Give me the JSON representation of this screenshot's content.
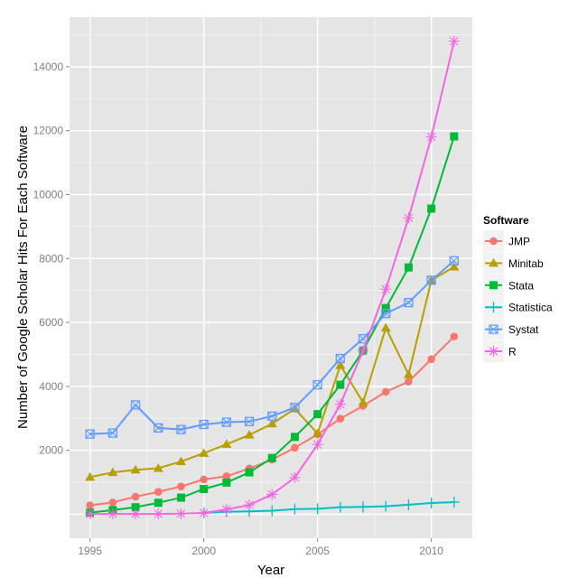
{
  "chart_data": {
    "type": "line",
    "title": "",
    "xlabel": "Year",
    "ylabel": "Number of Google Scholar Hits For Each Software",
    "xlim": [
      1994.1,
      2011.8
    ],
    "ylim": [
      -750,
      15550
    ],
    "x_ticks": [
      1995,
      2000,
      2005,
      2010
    ],
    "x_tick_labels": [
      "1995",
      "2000",
      "2005",
      "2010"
    ],
    "y_ticks": [
      2000,
      4000,
      6000,
      8000,
      10000,
      12000,
      14000
    ],
    "y_tick_labels": [
      "2000",
      "4000",
      "6000",
      "8000",
      "10000",
      "12000",
      "14000"
    ],
    "grid": true,
    "legend": {
      "title": "Software",
      "placement": "right"
    },
    "x": [
      1995,
      1996,
      1997,
      1998,
      1999,
      2000,
      2001,
      2002,
      2003,
      2004,
      2005,
      2006,
      2007,
      2008,
      2009,
      2010,
      2011
    ],
    "series": [
      {
        "name": "JMP",
        "color": "#F8766D",
        "marker": "circle",
        "values": [
          280,
          370,
          550,
          700,
          870,
          1090,
          1190,
          1430,
          1710,
          2080,
          2500,
          2990,
          3390,
          3830,
          4150,
          4850,
          5560
        ]
      },
      {
        "name": "Minitab",
        "color": "#B79F00",
        "marker": "triangle",
        "values": [
          1160,
          1310,
          1390,
          1440,
          1650,
          1910,
          2190,
          2480,
          2830,
          3300,
          2530,
          4660,
          3500,
          5830,
          4370,
          7320,
          7740
        ]
      },
      {
        "name": "Stata",
        "color": "#00BA38",
        "marker": "square",
        "values": [
          50,
          130,
          220,
          360,
          520,
          790,
          990,
          1310,
          1760,
          2420,
          3130,
          4050,
          5120,
          6450,
          7720,
          9560,
          11820
        ]
      },
      {
        "name": "Statistica",
        "color": "#00BFC4",
        "marker": "plus",
        "values": [
          null,
          null,
          null,
          null,
          null,
          40,
          80,
          90,
          110,
          160,
          170,
          220,
          230,
          250,
          300,
          350,
          380
        ]
      },
      {
        "name": "Systat",
        "color": "#619CFF",
        "marker": "square-x",
        "values": [
          2510,
          2540,
          3420,
          2700,
          2650,
          2810,
          2880,
          2900,
          3070,
          3340,
          4050,
          4870,
          5490,
          6280,
          6620,
          7320,
          7930
        ]
      },
      {
        "name": "R",
        "color": "#F564E3",
        "marker": "asterisk",
        "values": [
          10,
          10,
          10,
          10,
          20,
          40,
          150,
          290,
          620,
          1150,
          2180,
          3440,
          5120,
          7040,
          9270,
          11800,
          14800
        ]
      }
    ]
  }
}
